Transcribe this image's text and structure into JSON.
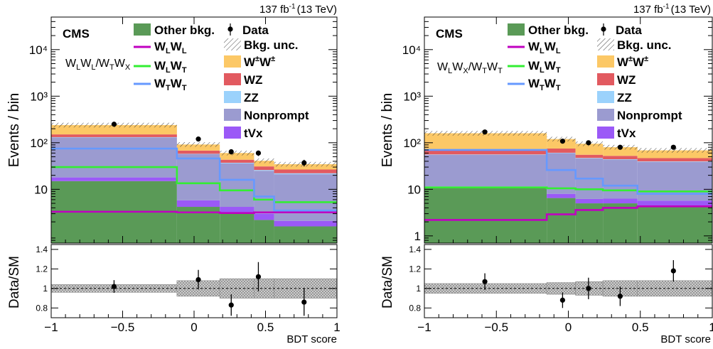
{
  "colors": {
    "other_bkg": "#5a9a57",
    "wpmwpm": "#fcc866",
    "wz": "#e25a60",
    "zz": "#9bd2fc",
    "nonprompt": "#9b9bd0",
    "tvx": "#9b59f7",
    "wlwl": "#c000c0",
    "wlwt": "#33ee33",
    "wtwt": "#6699ff"
  },
  "chart_data": [
    {
      "type": "histogram-stack",
      "lumi_label": "137 fb",
      "lumi_exp": "-1",
      "lumi_energy": "(13 TeV)",
      "cms_label": "CMS",
      "region_label": {
        "p1": "W",
        "s1": "L",
        "p2": "W",
        "s2": "L",
        "p3": "/W",
        "s3": "T",
        "p4": "W",
        "s4": "X"
      },
      "ylabel": "Events / bin",
      "ratio_ylabel": "Data/SM",
      "xlabel": "BDT score",
      "ylog": true,
      "ylim": [
        0.7,
        50000
      ],
      "ytick_labels": [
        "10",
        "10²",
        "10³",
        "10⁴"
      ],
      "xlim": [
        -1,
        1
      ],
      "xtick_labels": [
        "−1",
        "−0.5",
        "0",
        "0.5",
        "1"
      ],
      "ratio_ylim": [
        0.7,
        1.45
      ],
      "ratio_ytick_labels": [
        "0.8",
        "1",
        "1.2",
        "1.4"
      ],
      "bin_edges": [
        -1,
        -0.12,
        0.18,
        0.42,
        0.56,
        1
      ],
      "stack": [
        {
          "key": "other_bkg",
          "values": [
            15,
            4.2,
            3.2,
            2.2,
            1.6
          ]
        },
        {
          "key": "tvx",
          "values": [
            3,
            1.6,
            1.0,
            0.8,
            0.5
          ]
        },
        {
          "key": "nonprompt",
          "values": [
            112,
            51,
            32,
            22,
            19
          ]
        },
        {
          "key": "zz",
          "values": [
            2,
            1,
            1,
            1,
            1
          ]
        },
        {
          "key": "wz",
          "values": [
            19,
            10,
            6,
            5,
            4.5
          ]
        },
        {
          "key": "wpmwpm",
          "values": [
            89,
            24,
            17,
            10,
            8
          ]
        }
      ],
      "signals": [
        {
          "key": "wlwl",
          "values": [
            3.3,
            3.2,
            3.1,
            3.2,
            3.2
          ]
        },
        {
          "key": "wlwt",
          "values": [
            30,
            13.5,
            9.5,
            6,
            5.3
          ]
        },
        {
          "key": "wtwt",
          "values": [
            75,
            46,
            16,
            7,
            3.5
          ]
        }
      ],
      "data_points": [
        {
          "x": -0.56,
          "y": 250,
          "ylo": 235,
          "yhi": 266
        },
        {
          "x": 0.03,
          "y": 120,
          "ylo": 109,
          "yhi": 131
        },
        {
          "x": 0.26,
          "y": 64,
          "ylo": 56,
          "yhi": 72
        },
        {
          "x": 0.45,
          "y": 60,
          "ylo": 52,
          "yhi": 68
        },
        {
          "x": 0.77,
          "y": 37,
          "ylo": 31,
          "yhi": 43
        }
      ],
      "ratio_points": [
        {
          "x": -0.56,
          "y": 1.02,
          "err": 0.065
        },
        {
          "x": 0.03,
          "y": 1.09,
          "err": 0.1
        },
        {
          "x": 0.26,
          "y": 0.83,
          "err": 0.11
        },
        {
          "x": 0.45,
          "y": 1.12,
          "err": 0.15
        },
        {
          "x": 0.77,
          "y": 0.86,
          "err": 0.14
        }
      ],
      "ratio_unc": [
        0.04,
        0.08,
        0.1,
        0.1,
        0.1
      ]
    },
    {
      "type": "histogram-stack",
      "lumi_label": "137 fb",
      "lumi_exp": "-1",
      "lumi_energy": "(13 TeV)",
      "cms_label": "CMS",
      "region_label": {
        "p1": "W",
        "s1": "L",
        "p2": "W",
        "s2": "X",
        "p3": "/W",
        "s3": "T",
        "p4": "W",
        "s4": "T"
      },
      "ylabel": "Events / bin",
      "ratio_ylabel": "Data/SM",
      "xlabel": "BDT score",
      "ylog": true,
      "ylim": [
        0.7,
        50000
      ],
      "ytick_labels": [
        "1",
        "10",
        "10²",
        "10³",
        "10⁴"
      ],
      "xlim": [
        -1,
        1
      ],
      "xtick_labels": [
        "−1",
        "−0.5",
        "0",
        "0.5",
        "1"
      ],
      "ratio_ylim": [
        0.7,
        1.45
      ],
      "ratio_ytick_labels": [
        "0.8",
        "1",
        "1.2",
        "1.4"
      ],
      "bin_edges": [
        -1,
        -0.15,
        0.05,
        0.24,
        0.48,
        1
      ],
      "stack": [
        {
          "key": "other_bkg",
          "values": [
            11,
            6.5,
            5,
            5,
            4.5
          ]
        },
        {
          "key": "tvx",
          "values": [
            0.5,
            1.5,
            1.2,
            1.3,
            1.2
          ]
        },
        {
          "key": "nonprompt",
          "values": [
            43.5,
            52,
            40,
            37,
            33
          ]
        },
        {
          "key": "zz",
          "values": [
            1,
            1,
            1,
            1,
            1
          ]
        },
        {
          "key": "wz",
          "values": [
            14,
            14,
            8,
            8,
            7
          ]
        },
        {
          "key": "wpmwpm",
          "values": [
            90,
            45,
            40,
            28,
            22
          ]
        }
      ],
      "signals": [
        {
          "key": "wlwl",
          "values": [
            2.2,
            2.9,
            3.6,
            4.0,
            4.3
          ]
        },
        {
          "key": "wlwt",
          "values": [
            11,
            10.5,
            10,
            9.5,
            9
          ]
        },
        {
          "key": "wtwt",
          "values": [
            70,
            26,
            17,
            12,
            8
          ]
        }
      ],
      "data_points": [
        {
          "x": -0.58,
          "y": 170,
          "ylo": 157,
          "yhi": 183
        },
        {
          "x": -0.04,
          "y": 108,
          "ylo": 98,
          "yhi": 118
        },
        {
          "x": 0.14,
          "y": 100,
          "ylo": 90,
          "yhi": 110
        },
        {
          "x": 0.36,
          "y": 80,
          "ylo": 71,
          "yhi": 89
        },
        {
          "x": 0.73,
          "y": 80,
          "ylo": 71,
          "yhi": 89
        }
      ],
      "ratio_points": [
        {
          "x": -0.58,
          "y": 1.07,
          "err": 0.085
        },
        {
          "x": -0.04,
          "y": 0.88,
          "err": 0.08
        },
        {
          "x": 0.14,
          "y": 1.0,
          "err": 0.11
        },
        {
          "x": 0.36,
          "y": 0.92,
          "err": 0.1
        },
        {
          "x": 0.73,
          "y": 1.18,
          "err": 0.11
        }
      ],
      "ratio_unc": [
        0.05,
        0.06,
        0.07,
        0.08,
        0.08
      ]
    }
  ],
  "legend": {
    "other_bkg": "Other bkg.",
    "data": "Data",
    "bkg_unc": "Bkg. unc.",
    "wpmwpm": {
      "p1": "W",
      "s1": "±",
      "p2": "W",
      "s2": "±"
    },
    "wz": "WZ",
    "zz": "ZZ",
    "nonprompt": "Nonprompt",
    "tvx": "tVx",
    "wlwl": {
      "p1": "W",
      "s1": "L",
      "p2": "W",
      "s2": "L"
    },
    "wlwt": {
      "p1": "W",
      "s1": "L",
      "p2": "W",
      "s2": "T"
    },
    "wtwt": {
      "p1": "W",
      "s1": "T",
      "p2": "W",
      "s2": "T"
    }
  }
}
